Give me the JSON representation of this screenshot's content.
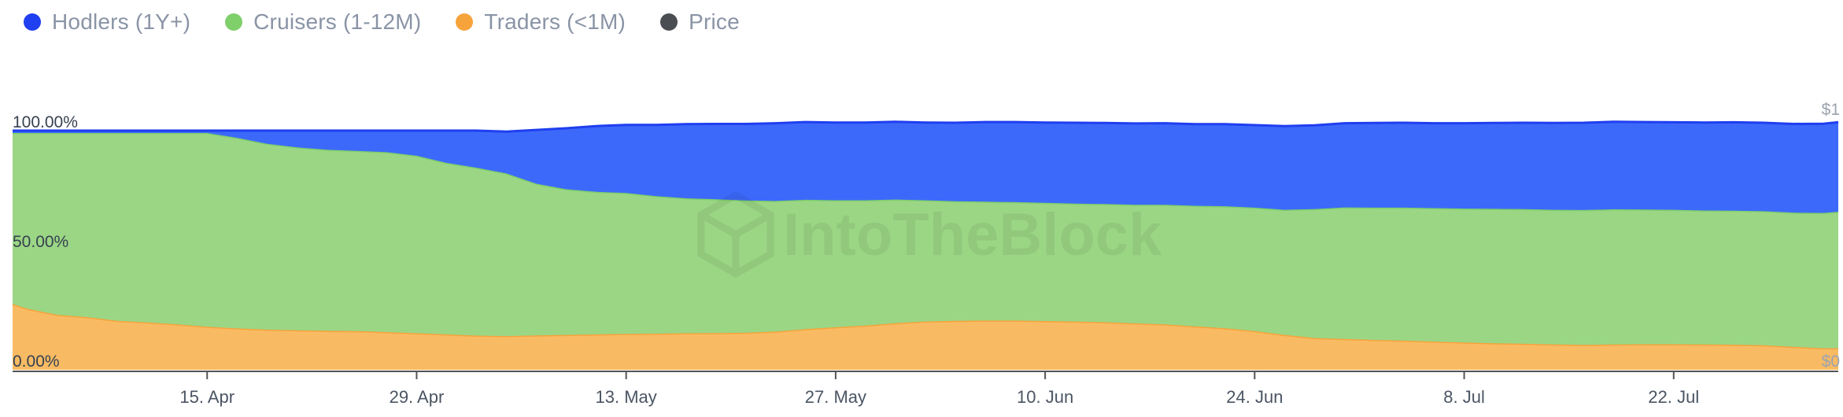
{
  "legend": [
    {
      "label": "Hodlers (1Y+)",
      "color": "#1f3ff0"
    },
    {
      "label": "Cruisers (1-12M)",
      "color": "#7fcf6a"
    },
    {
      "label": "Traders (<1M)",
      "color": "#f7a33c"
    },
    {
      "label": "Price",
      "color": "#4a4d52"
    }
  ],
  "watermark": "IntoTheBlock",
  "right_axis": {
    "top_label": "$1",
    "bottom_label": "$0"
  },
  "chart_data": {
    "type": "area",
    "stacked": true,
    "title": "",
    "y_tick_labels": [
      "100.00%",
      "50.00%",
      "0.00%"
    ],
    "y_ticks": [
      100,
      50,
      0
    ],
    "ylim": [
      0,
      100
    ],
    "x_tick_labels": [
      "15. Apr",
      "29. Apr",
      "13. May",
      "27. May",
      "10. Jun",
      "24. Jun",
      "8. Jul",
      "22. Jul"
    ],
    "x_tick_days": [
      13,
      27,
      41,
      55,
      69,
      83,
      97,
      111
    ],
    "x_day_range": [
      0,
      122
    ],
    "series": [
      {
        "name": "Traders (<1M)",
        "color": "#f7a33c",
        "fill": "#f8bb63",
        "points": [
          [
            0,
            27.5
          ],
          [
            1,
            25.5
          ],
          [
            3,
            23
          ],
          [
            5,
            22
          ],
          [
            7,
            20.5
          ],
          [
            9,
            19.8
          ],
          [
            11,
            19
          ],
          [
            13,
            18
          ],
          [
            15,
            17.3
          ],
          [
            17,
            16.8
          ],
          [
            19,
            16.5
          ],
          [
            21,
            16.3
          ],
          [
            23,
            16.2
          ],
          [
            25,
            15.8
          ],
          [
            27,
            15.3
          ],
          [
            29,
            14.8
          ],
          [
            31,
            14.3
          ],
          [
            33,
            14.1
          ],
          [
            35,
            14.4
          ],
          [
            37,
            14.6
          ],
          [
            39,
            14.8
          ],
          [
            41,
            15
          ],
          [
            43,
            15.1
          ],
          [
            45,
            15.3
          ],
          [
            47,
            15.4
          ],
          [
            49,
            15.5
          ],
          [
            51,
            16
          ],
          [
            53,
            17
          ],
          [
            55,
            17.8
          ],
          [
            57,
            18.5
          ],
          [
            59,
            19.5
          ],
          [
            61,
            20.2
          ],
          [
            63,
            20.5
          ],
          [
            65,
            20.6
          ],
          [
            67,
            20.6
          ],
          [
            69,
            20.4
          ],
          [
            71,
            20.2
          ],
          [
            73,
            19.9
          ],
          [
            75,
            19.4
          ],
          [
            77,
            19
          ],
          [
            79,
            18.2
          ],
          [
            81,
            17.4
          ],
          [
            83,
            16.2
          ],
          [
            85,
            14.6
          ],
          [
            87,
            13.3
          ],
          [
            89,
            12.9
          ],
          [
            91,
            12.5
          ],
          [
            93,
            12.2
          ],
          [
            95,
            11.8
          ],
          [
            97,
            11.4
          ],
          [
            99,
            11.1
          ],
          [
            101,
            10.9
          ],
          [
            103,
            10.6
          ],
          [
            105,
            10.4
          ],
          [
            107,
            10.6
          ],
          [
            109,
            10.7
          ],
          [
            111,
            10.7
          ],
          [
            113,
            10.6
          ],
          [
            115,
            10.5
          ],
          [
            117,
            10.3
          ],
          [
            119,
            9.6
          ],
          [
            121,
            9.0
          ],
          [
            122,
            9.0
          ]
        ]
      },
      {
        "name": "Cruisers (1-12M)",
        "color": "#7fcf6a",
        "fill": "#9bd685",
        "points": [
          [
            0,
            71.5
          ],
          [
            1,
            73.5
          ],
          [
            3,
            76
          ],
          [
            5,
            77
          ],
          [
            7,
            78.5
          ],
          [
            9,
            79.2
          ],
          [
            11,
            80
          ],
          [
            13,
            81
          ],
          [
            15,
            79.7
          ],
          [
            17,
            77.7
          ],
          [
            19,
            76.5
          ],
          [
            21,
            75.7
          ],
          [
            23,
            75.3
          ],
          [
            25,
            75.2
          ],
          [
            27,
            74.2
          ],
          [
            29,
            71.7
          ],
          [
            31,
            70.2
          ],
          [
            32,
            68
          ],
          [
            33,
            63.4
          ],
          [
            35,
            60.9
          ],
          [
            37,
            59.6
          ],
          [
            39,
            58.9
          ],
          [
            41,
            57.5
          ],
          [
            43,
            56.4
          ],
          [
            45,
            55.9
          ],
          [
            47,
            55.3
          ],
          [
            49,
            54.6
          ],
          [
            51,
            54.1
          ],
          [
            53,
            53.1
          ],
          [
            55,
            52.4
          ],
          [
            57,
            51.7
          ],
          [
            59,
            50.7
          ],
          [
            61,
            50
          ],
          [
            63,
            49.7
          ],
          [
            65,
            49.5
          ],
          [
            67,
            49.4
          ],
          [
            69,
            49.3
          ],
          [
            71,
            49.4
          ],
          [
            73,
            49.6
          ],
          [
            75,
            50
          ],
          [
            77,
            50.4
          ],
          [
            79,
            51
          ],
          [
            81,
            51.6
          ],
          [
            83,
            52.3
          ],
          [
            85,
            53.9
          ],
          [
            87,
            55
          ],
          [
            89,
            55.3
          ],
          [
            91,
            55.6
          ],
          [
            93,
            55.8
          ],
          [
            95,
            56
          ],
          [
            97,
            56.2
          ],
          [
            99,
            56.3
          ],
          [
            101,
            56.3
          ],
          [
            103,
            56.4
          ],
          [
            105,
            56.5
          ],
          [
            107,
            56.3
          ],
          [
            109,
            56.2
          ],
          [
            111,
            56
          ],
          [
            113,
            56
          ],
          [
            115,
            56
          ],
          [
            117,
            56.1
          ],
          [
            119,
            56.6
          ],
          [
            121,
            57.1
          ],
          [
            122,
            57.1
          ]
        ]
      },
      {
        "name": "Hodlers (1Y+)",
        "color": "#1f3ff0",
        "fill": "#3d69fa",
        "points": [
          [
            0,
            1
          ],
          [
            1,
            1
          ],
          [
            3,
            1
          ],
          [
            5,
            1
          ],
          [
            7,
            1
          ],
          [
            9,
            1
          ],
          [
            11,
            1
          ],
          [
            13,
            1
          ],
          [
            15,
            3
          ],
          [
            17,
            5.5
          ],
          [
            19,
            7
          ],
          [
            21,
            8
          ],
          [
            23,
            8.5
          ],
          [
            25,
            9
          ],
          [
            27,
            10.5
          ],
          [
            29,
            13.5
          ],
          [
            31,
            15.5
          ],
          [
            32,
            17.5
          ],
          [
            33,
            22.5
          ],
          [
            35,
            25.5
          ],
          [
            37,
            27.5
          ],
          [
            39,
            28.5
          ],
          [
            41,
            29.8
          ],
          [
            43,
            31
          ],
          [
            45,
            31.5
          ],
          [
            47,
            32
          ],
          [
            49,
            32.5
          ],
          [
            51,
            32.5
          ],
          [
            53,
            32.5
          ],
          [
            55,
            32.5
          ],
          [
            57,
            32.5
          ],
          [
            59,
            32.5
          ],
          [
            61,
            32.8
          ],
          [
            63,
            33.3
          ],
          [
            65,
            33.5
          ],
          [
            67,
            33.6
          ],
          [
            69,
            33.8
          ],
          [
            71,
            33.9
          ],
          [
            73,
            34
          ],
          [
            75,
            34.1
          ],
          [
            77,
            34.1
          ],
          [
            79,
            34.3
          ],
          [
            81,
            34.5
          ],
          [
            83,
            35
          ],
          [
            85,
            35
          ],
          [
            87,
            35.2
          ],
          [
            89,
            35.4
          ],
          [
            91,
            35.5
          ],
          [
            93,
            35.5
          ],
          [
            95,
            35.7
          ],
          [
            97,
            35.9
          ],
          [
            99,
            36.1
          ],
          [
            101,
            36.3
          ],
          [
            103,
            36.5
          ],
          [
            105,
            36.6
          ],
          [
            107,
            36.6
          ],
          [
            109,
            36.6
          ],
          [
            111,
            36.8
          ],
          [
            113,
            37
          ],
          [
            115,
            37
          ],
          [
            117,
            37.1
          ],
          [
            119,
            37.3
          ],
          [
            121,
            37.4
          ],
          [
            122,
            37.4
          ]
        ]
      }
    ]
  }
}
